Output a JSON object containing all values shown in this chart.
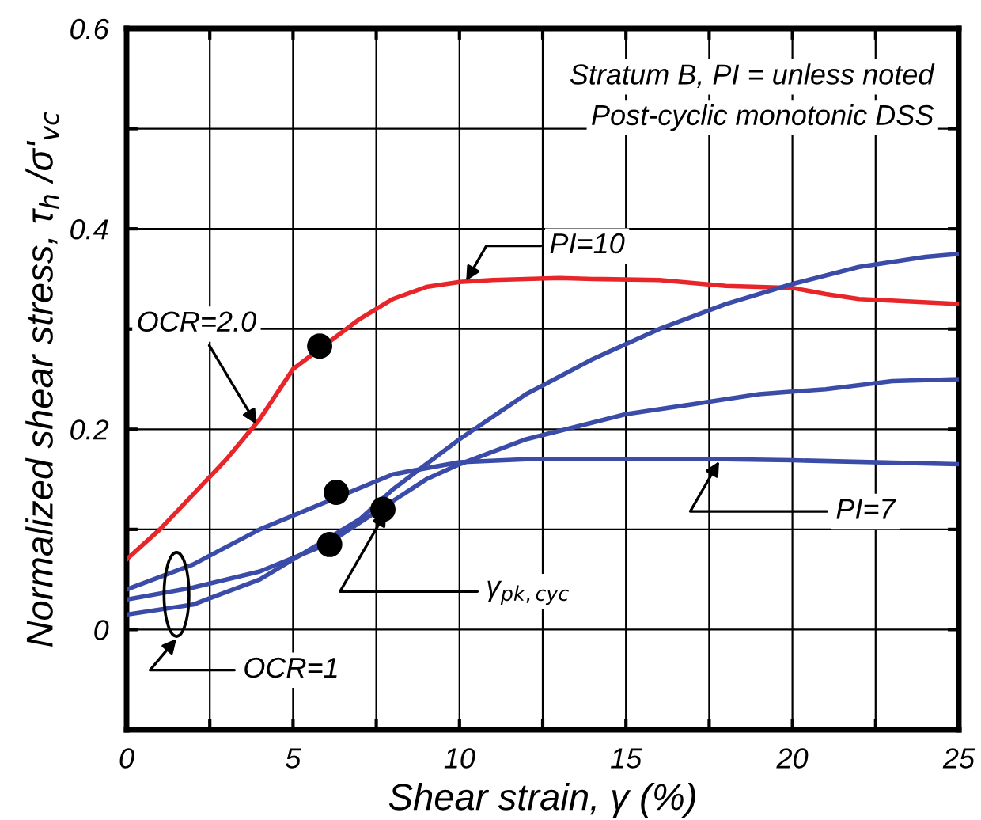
{
  "chart_data": {
    "type": "line",
    "xlabel": "Shear strain, γ (%)",
    "ylabel": "Normalized shear stress, τ$_{h}$ /σ'$_{vc}$",
    "series": [
      {
        "color": "#e8262a",
        "x": [
          0,
          1,
          2,
          3,
          4,
          5,
          7,
          8,
          9,
          10,
          11,
          13,
          14,
          16,
          18,
          20,
          21,
          22,
          25
        ],
        "values": [
          0.07,
          0.1,
          0.135,
          0.17,
          0.21,
          0.26,
          0.31,
          0.33,
          0.342,
          0.347,
          0.349,
          0.351,
          0.35,
          0.349,
          0.343,
          0.341,
          0.335,
          0.33,
          0.325
        ]
      },
      {
        "color": "#3a4ba8",
        "x": [
          0,
          2,
          4,
          8,
          10,
          12,
          15,
          18,
          20,
          25
        ],
        "values": [
          0.04,
          0.065,
          0.1,
          0.155,
          0.167,
          0.17,
          0.17,
          0.17,
          0.169,
          0.165
        ]
      },
      {
        "color": "#3a4ba8",
        "x": [
          0,
          2,
          4,
          6,
          9,
          10,
          12,
          15,
          17,
          19,
          21,
          23,
          25
        ],
        "values": [
          0.03,
          0.042,
          0.058,
          0.085,
          0.15,
          0.165,
          0.19,
          0.215,
          0.225,
          0.235,
          0.24,
          0.248,
          0.25
        ]
      },
      {
        "color": "#3a4ba8",
        "x": [
          0,
          2,
          4,
          6,
          7,
          8,
          9,
          10,
          12,
          14,
          16,
          18,
          20,
          22,
          24,
          25
        ],
        "values": [
          0.015,
          0.025,
          0.05,
          0.09,
          0.11,
          0.14,
          0.165,
          0.19,
          0.235,
          0.27,
          0.3,
          0.325,
          0.345,
          0.362,
          0.372,
          0.375
        ]
      },
      {
        "type": "scatter",
        "color": "#000000",
        "x": [
          5.8,
          6.3,
          6.1,
          7.7
        ],
        "values": [
          0.283,
          0.137,
          0.085,
          0.12
        ]
      }
    ],
    "xlim": [
      0,
      25
    ],
    "xticks": [
      0,
      {
        "value": 2.5,
        "label": null
      },
      5,
      {
        "value": 7.5,
        "label": null
      },
      10,
      {
        "value": 12.5,
        "label": null
      },
      15,
      {
        "value": 17.5,
        "label": null
      },
      20,
      {
        "value": 22.5,
        "label": null
      },
      25
    ],
    "ylim": [
      -0.1,
      0.6
    ],
    "yticks": [
      {
        "value": -0.1,
        "label": null
      },
      0,
      {
        "value": 0.1,
        "label": null
      },
      0.2,
      {
        "value": 0.3,
        "label": null
      },
      0.4,
      {
        "value": 0.5,
        "label": null
      },
      0.6
    ],
    "grid": true,
    "annotations": [
      "Stratum B, PI = unless noted",
      "Post-cyclic monotonic DSS",
      {
        "text": "PI=10",
        "x": 10.2,
        "y": 0.348
      },
      {
        "text": "OCR=2.0",
        "x": 3.9,
        "y": 0.205
      },
      {
        "text": "PI=7",
        "x": 17.8,
        "y": 0.168
      },
      {
        "text": "γ$_{pk,cyc}$",
        "x": 7.8,
        "y": 0.118
      },
      "OCR=1"
    ]
  }
}
